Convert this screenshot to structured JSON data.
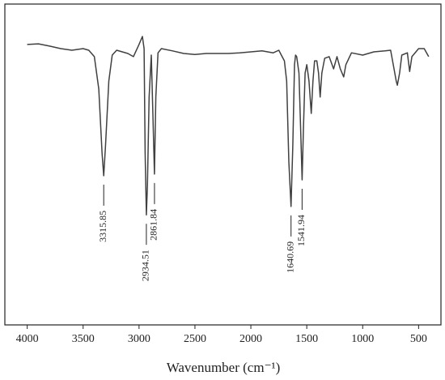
{
  "chart_data": {
    "type": "line",
    "xlabel": "Wavenumber (cm⁻¹)",
    "xlim": [
      4200,
      300
    ],
    "xticks": [
      4000,
      3500,
      3000,
      2500,
      2000,
      1500,
      1000,
      500
    ],
    "ylim": [
      0,
      100
    ],
    "color": "#404040",
    "x": [
      4000,
      3900,
      3800,
      3700,
      3600,
      3500,
      3450,
      3400,
      3360,
      3330,
      3315.85,
      3300,
      3270,
      3240,
      3200,
      3100,
      3050,
      3000,
      2970,
      2955,
      2945,
      2934.51,
      2925,
      2910,
      2890,
      2880,
      2861.84,
      2850,
      2830,
      2800,
      2700,
      2600,
      2500,
      2400,
      2300,
      2200,
      2100,
      2000,
      1900,
      1800,
      1750,
      1720,
      1700,
      1680,
      1660,
      1640.69,
      1625,
      1610,
      1600,
      1590,
      1570,
      1555,
      1541.94,
      1530,
      1515,
      1500,
      1480,
      1460,
      1445,
      1430,
      1410,
      1395,
      1380,
      1365,
      1340,
      1300,
      1260,
      1230,
      1200,
      1170,
      1150,
      1100,
      1000,
      900,
      800,
      750,
      720,
      700,
      690,
      670,
      650,
      600,
      580,
      560,
      500,
      450,
      410
    ],
    "values": [
      87.4,
      87.6,
      86.9,
      86.1,
      85.6,
      86.1,
      85.6,
      83.6,
      73.5,
      53.3,
      46.5,
      55.8,
      76.0,
      84.1,
      85.6,
      84.6,
      83.6,
      87.4,
      89.9,
      86.1,
      53.3,
      34.3,
      43.2,
      71.0,
      84.1,
      71.0,
      47.0,
      71.0,
      84.8,
      86.1,
      85.4,
      84.6,
      84.3,
      84.6,
      84.6,
      84.6,
      84.8,
      85.1,
      85.4,
      84.8,
      85.6,
      83.6,
      82.3,
      76.0,
      50.8,
      36.9,
      55.8,
      81.1,
      84.1,
      83.6,
      78.5,
      60.9,
      45.2,
      60.9,
      78.5,
      81.1,
      76.0,
      65.9,
      76.0,
      82.3,
      82.3,
      78.5,
      71.0,
      78.5,
      83.1,
      83.6,
      79.8,
      83.6,
      79.8,
      77.3,
      81.1,
      84.8,
      84.1,
      85.1,
      85.4,
      85.6,
      79.8,
      76.0,
      74.7,
      78.5,
      84.1,
      84.8,
      79.0,
      83.6,
      86.1,
      86.1,
      83.6
    ],
    "annotations": [
      {
        "x": 3315.85,
        "label": "3315.85"
      },
      {
        "x": 2934.51,
        "label": "2934.51"
      },
      {
        "x": 2861.84,
        "label": "2861.84"
      },
      {
        "x": 1640.69,
        "label": "1640.69"
      },
      {
        "x": 1541.94,
        "label": "1541.94"
      }
    ]
  }
}
